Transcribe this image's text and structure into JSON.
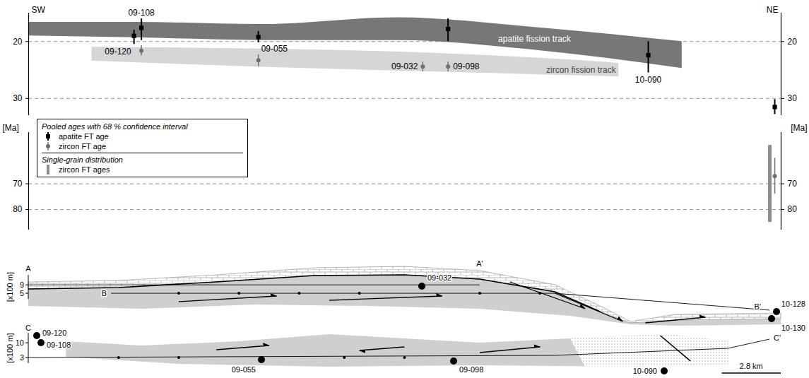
{
  "chart_data": {
    "type": "scatter",
    "direction_labels": [
      "SW",
      "NE"
    ],
    "xlim": [
      0,
      35.7
    ],
    "tick_labels": "y",
    "grid": true,
    "legend": "left",
    "legend_title": "Pooled ages with 68 % confidence interval",
    "panels": [
      {
        "ylim": [
          15,
          33
        ],
        "yticks": [
          20,
          30
        ]
      },
      {
        "ylim": [
          50,
          88
        ],
        "yticks": [
          70,
          80
        ],
        "ylabel": "[Ma]"
      }
    ],
    "bands": [
      {
        "name": "apatite fission track",
        "color": "#777777",
        "x": [
          0,
          5,
          11,
          17.5,
          24,
          31
        ],
        "top": [
          16.6,
          16.6,
          17.0,
          15.8,
          17.5,
          20.0
        ],
        "bottom": [
          19.0,
          19.3,
          19.8,
          19.8,
          21.5,
          24.7
        ]
      },
      {
        "name": "zircon fission track",
        "color": "#d6d6d6",
        "x": [
          3,
          11,
          19,
          26,
          28
        ],
        "top": [
          21.0,
          21.3,
          22.0,
          23.3,
          23.8
        ],
        "bottom": [
          23.4,
          24.5,
          25.3,
          26.0,
          26.2
        ]
      }
    ],
    "series": [
      {
        "name": "apatite FT age",
        "marker": "square",
        "color": "#000000",
        "x": [
          5.0,
          5.35,
          10.9,
          19.9,
          29.4,
          35.4
        ],
        "values": [
          19.0,
          17.6,
          19.2,
          17.8,
          22.4,
          31.5
        ],
        "error_low": [
          18.0,
          16.0,
          18.2,
          16.0,
          20.0,
          30.2
        ],
        "error_high": [
          20.5,
          19.8,
          20.2,
          20.0,
          25.5,
          32.8
        ],
        "labels": [
          "09-120",
          "09-108",
          "09-055",
          null,
          "10-090",
          null
        ]
      },
      {
        "name": "zircon FT age",
        "marker": "circle",
        "color": "#6e6e6e",
        "x": [
          5.35,
          10.9,
          18.7,
          19.9,
          35.4
        ],
        "values": [
          21.6,
          23.3,
          24.4,
          24.4,
          67.0
        ],
        "error_low": [
          20.7,
          22.3,
          23.6,
          23.6,
          60.0
        ],
        "error_high": [
          22.5,
          24.4,
          25.3,
          25.3,
          74.0
        ],
        "labels": [
          null,
          null,
          "09-032",
          "09-098",
          null
        ]
      },
      {
        "name": "zircon FT ages",
        "type": "range",
        "legend_group": "Single-grain distribution",
        "color": "#8c8c8c",
        "x": [
          35.4
        ],
        "low": [
          55
        ],
        "high": [
          85
        ]
      }
    ],
    "scale_bar": {
      "length": 2.8,
      "label": "2.8 km"
    }
  },
  "cross_sections": [
    {
      "profiles": [
        {
          "start": "A",
          "end": "A'",
          "elevation": 9
        },
        {
          "start": "B",
          "end": "B'",
          "elevation": 5
        }
      ],
      "elevation_ticks": [
        9,
        5
      ],
      "unit": "[x100 m]",
      "samples": [
        "09-032",
        "10-128",
        "10-130"
      ]
    },
    {
      "profiles": [
        {
          "start": "C",
          "end": "C'",
          "elevation": 3
        }
      ],
      "elevation_ticks": [
        10,
        3
      ],
      "unit": "[x100 m]",
      "samples": [
        "09-120",
        "09-108",
        "09-055",
        "09-098",
        "10-090"
      ]
    }
  ]
}
